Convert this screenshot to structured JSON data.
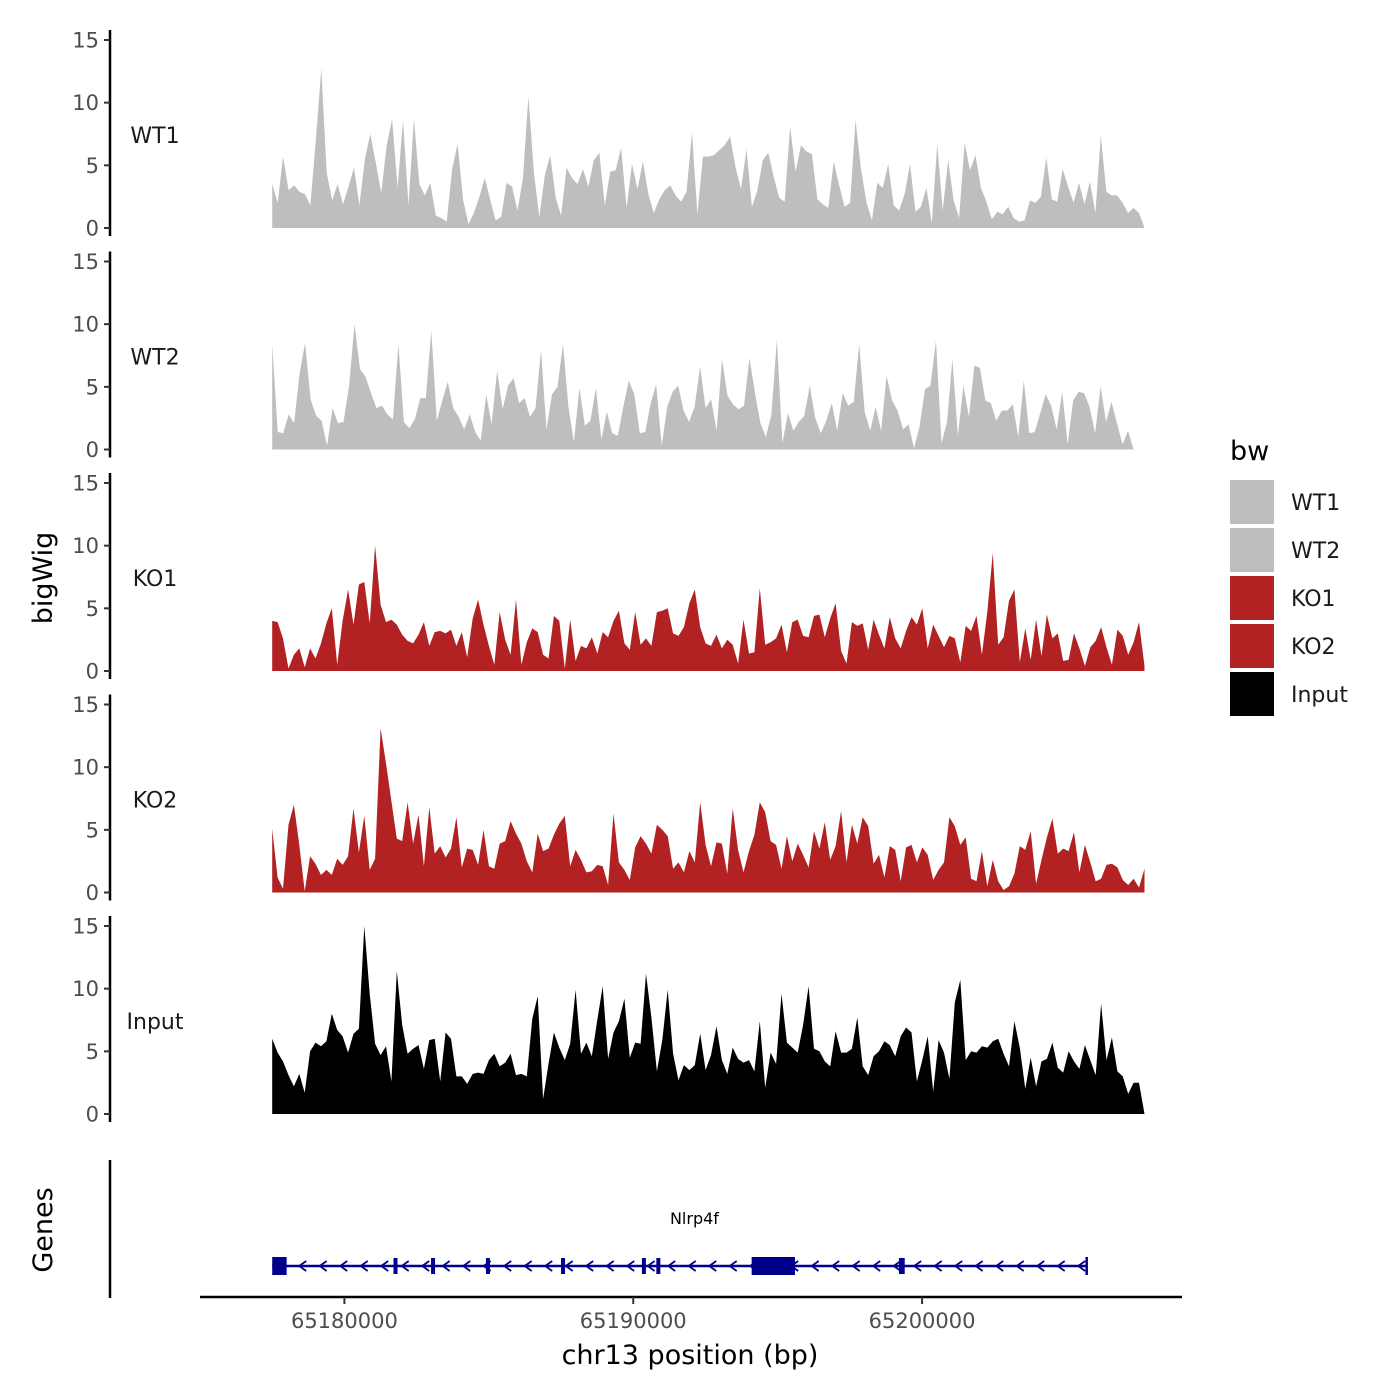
{
  "chart_data": {
    "type": "area",
    "chromosome": "chr13",
    "xlabel": "chr13 position (bp)",
    "ylabel": "bigWig",
    "genes_label": "Genes",
    "x_range": [
      65175000,
      65209000
    ],
    "x_ticks": [
      65180000,
      65190000,
      65200000
    ],
    "x_tick_labels": [
      "65180000",
      "65190000",
      "65200000"
    ],
    "data_x_range": [
      65177500,
      65207700
    ],
    "ylim": [
      0,
      15
    ],
    "y_ticks": [
      0,
      5,
      10,
      15
    ],
    "y_tick_labels": [
      "0",
      "5",
      "10",
      "15"
    ],
    "legend": {
      "title": "bw",
      "position": "right"
    },
    "series": [
      {
        "name": "WT1",
        "color": "#bebebe",
        "values": [
          3.5,
          2.0,
          5.7,
          3.0,
          3.4,
          2.9,
          2.7,
          1.8,
          7.0,
          12.7,
          4.4,
          2.2,
          3.5,
          1.9,
          3.3,
          4.8,
          1.8,
          5.5,
          7.5,
          5.2,
          2.8,
          6.6,
          8.7,
          3.2,
          8.6,
          1.8,
          8.7,
          3.5,
          2.6,
          3.6,
          1.0,
          0.8,
          0.5,
          4.7,
          6.7,
          2.3,
          0.3,
          1.2,
          2.5,
          4.0,
          2.2,
          0.6,
          0.9,
          3.6,
          3.3,
          1.4,
          4.0,
          10.5,
          4.4,
          0.9,
          4.2,
          5.8,
          2.4,
          1.0,
          4.8,
          4.0,
          3.5,
          4.7,
          3.3,
          5.4,
          6.0,
          1.8,
          4.5,
          4.6,
          6.4,
          1.6,
          5.1,
          3.1,
          5.3,
          2.7,
          1.2,
          2.3,
          3.0,
          3.4,
          2.6,
          2.1,
          2.9,
          7.6,
          1.1,
          5.7,
          5.7,
          5.8,
          6.2,
          6.6,
          7.3,
          4.8,
          3.1,
          6.3,
          1.7,
          3.0,
          5.4,
          6.0,
          4.1,
          2.4,
          2.1,
          8.1,
          4.5,
          6.6,
          6.1,
          5.9,
          2.3,
          1.9,
          1.6,
          5.3,
          3.4,
          1.7,
          2.0,
          8.6,
          4.7,
          2.1,
          0.6,
          3.6,
          3.2,
          5.1,
          1.8,
          1.4,
          2.7,
          5.1,
          1.3,
          1.7,
          3.2,
          0.4,
          6.7,
          1.4,
          5.4,
          2.2,
          0.8,
          6.8,
          4.6,
          5.8,
          3.2,
          2.1,
          0.7,
          1.3,
          1.1,
          1.7,
          0.8,
          0.5,
          0.6,
          2.2,
          2.0,
          2.5,
          5.6,
          2.3,
          2.1,
          4.7,
          3.3,
          2.0,
          3.6,
          1.9,
          3.7,
          1.2,
          7.4,
          2.9,
          2.6,
          2.6,
          2.0,
          1.2,
          1.6,
          1.2,
          0.0
        ]
      },
      {
        "name": "WT2",
        "color": "#bebebe",
        "values": [
          8.4,
          1.4,
          1.3,
          2.8,
          2.1,
          6.1,
          8.5,
          4.0,
          2.7,
          2.3,
          0.3,
          3.3,
          2.1,
          2.2,
          5.0,
          10.0,
          6.4,
          5.8,
          4.5,
          3.3,
          3.5,
          2.8,
          2.4,
          8.4,
          2.2,
          1.7,
          2.4,
          4.1,
          4.1,
          9.5,
          2.3,
          3.9,
          5.4,
          3.3,
          2.6,
          1.6,
          2.8,
          1.4,
          0.7,
          4.4,
          2.0,
          6.3,
          3.2,
          5.1,
          5.7,
          3.7,
          4.1,
          2.6,
          3.3,
          7.9,
          1.6,
          4.4,
          5.0,
          8.4,
          3.4,
          0.6,
          4.9,
          1.9,
          2.3,
          4.9,
          0.8,
          3.0,
          1.3,
          1.1,
          3.4,
          5.5,
          4.4,
          1.3,
          1.4,
          3.7,
          5.2,
          0.3,
          3.4,
          4.6,
          5.1,
          3.1,
          2.2,
          3.4,
          6.6,
          3.3,
          4.0,
          1.5,
          7.2,
          4.3,
          3.6,
          3.2,
          3.5,
          7.3,
          4.5,
          2.1,
          1.0,
          2.8,
          8.8,
          0.5,
          2.9,
          1.5,
          2.2,
          2.7,
          5.1,
          2.5,
          1.3,
          2.3,
          3.7,
          1.5,
          4.5,
          3.5,
          3.8,
          8.4,
          3.0,
          1.5,
          3.4,
          1.5,
          5.9,
          3.9,
          3.1,
          1.6,
          2.0,
          0.1,
          1.8,
          4.8,
          5.1,
          8.7,
          0.5,
          2.2,
          7.2,
          1.1,
          5.1,
          2.6,
          6.7,
          6.5,
          3.9,
          3.7,
          2.3,
          3.1,
          3.1,
          3.6,
          1.0,
          5.5,
          1.3,
          1.4,
          2.9,
          4.4,
          3.5,
          1.6,
          4.6,
          0.4,
          3.9,
          4.6,
          4.5,
          3.4,
          1.3,
          5.0,
          2.2,
          3.8,
          2.1,
          0.4,
          1.5,
          0.0,
          0.0,
          0.0
        ]
      },
      {
        "name": "KO1",
        "color": "#b22222",
        "values": [
          4.0,
          3.9,
          2.6,
          0.2,
          1.3,
          1.8,
          0.3,
          1.8,
          1.0,
          2.2,
          3.8,
          5.0,
          0.5,
          4.0,
          6.5,
          3.7,
          6.9,
          7.1,
          3.8,
          10.0,
          5.3,
          3.9,
          4.1,
          3.7,
          2.9,
          2.4,
          2.2,
          2.9,
          3.9,
          2.0,
          3.1,
          3.2,
          3.0,
          3.3,
          2.0,
          3.1,
          1.1,
          4.2,
          5.7,
          3.7,
          2.0,
          0.5,
          4.7,
          2.5,
          1.3,
          5.7,
          0.5,
          2.3,
          3.4,
          3.1,
          1.3,
          1.0,
          4.4,
          4.0,
          0.2,
          4.1,
          0.8,
          2.0,
          1.8,
          2.7,
          1.4,
          3.1,
          2.7,
          4.0,
          4.8,
          2.2,
          1.7,
          4.7,
          2.1,
          2.6,
          2.0,
          4.7,
          4.8,
          5.0,
          3.0,
          2.8,
          3.5,
          5.4,
          6.5,
          3.5,
          2.2,
          2.0,
          2.9,
          1.8,
          2.5,
          2.1,
          0.6,
          4.1,
          1.4,
          1.5,
          6.6,
          2.1,
          2.3,
          2.6,
          3.7,
          1.5,
          3.9,
          4.1,
          2.8,
          2.7,
          4.4,
          4.5,
          2.7,
          4.2,
          5.4,
          1.6,
          0.6,
          3.9,
          3.6,
          3.8,
          1.7,
          4.1,
          2.9,
          1.8,
          4.3,
          2.6,
          1.8,
          3.2,
          4.3,
          3.7,
          5.0,
          1.8,
          3.7,
          2.8,
          1.9,
          2.8,
          2.6,
          0.7,
          3.6,
          3.2,
          4.4,
          1.3,
          4.7,
          9.4,
          2.1,
          2.7,
          5.6,
          6.5,
          0.7,
          3.4,
          0.9,
          4.1,
          1.2,
          4.5,
          2.6,
          3.0,
          0.8,
          0.9,
          3.0,
          1.8,
          0.4,
          1.9,
          2.4,
          3.5,
          1.9,
          0.5,
          3.3,
          2.8,
          1.3,
          2.3,
          3.9,
          0.4
        ]
      },
      {
        "name": "KO2",
        "color": "#b22222",
        "values": [
          5.1,
          1.2,
          0.3,
          5.4,
          7.0,
          3.8,
          0.1,
          2.9,
          2.3,
          1.4,
          1.8,
          1.4,
          2.7,
          2.2,
          2.9,
          6.7,
          3.2,
          6.1,
          1.8,
          2.7,
          13.1,
          10.3,
          7.3,
          4.3,
          4.1,
          7.2,
          3.9,
          6.2,
          2.1,
          6.8,
          3.1,
          3.7,
          2.8,
          3.5,
          6.0,
          2.0,
          3.5,
          3.4,
          2.2,
          5.0,
          2.1,
          1.9,
          3.9,
          4.1,
          5.7,
          4.7,
          3.9,
          2.5,
          1.6,
          4.7,
          3.3,
          3.5,
          4.6,
          5.5,
          6.1,
          2.1,
          3.4,
          2.6,
          1.6,
          1.7,
          2.2,
          2.1,
          0.6,
          6.3,
          2.4,
          1.8,
          1.0,
          3.6,
          4.5,
          3.9,
          3.1,
          5.4,
          5.0,
          4.5,
          1.9,
          2.4,
          1.6,
          3.3,
          2.4,
          7.2,
          3.8,
          2.1,
          4.0,
          3.9,
          1.5,
          6.7,
          3.4,
          1.6,
          3.3,
          4.6,
          7.2,
          6.4,
          4.1,
          3.8,
          1.9,
          4.5,
          2.5,
          3.9,
          3.0,
          2.0,
          4.9,
          3.5,
          5.6,
          2.6,
          3.7,
          6.5,
          2.4,
          5.4,
          3.9,
          6.0,
          5.3,
          2.3,
          3.0,
          1.2,
          3.7,
          3.4,
          0.9,
          3.6,
          3.8,
          2.4,
          3.6,
          3.0,
          1.0,
          1.8,
          2.4,
          6.0,
          5.3,
          3.8,
          4.4,
          1.1,
          0.9,
          3.3,
          0.5,
          2.6,
          0.9,
          0.2,
          0.5,
          1.5,
          3.7,
          3.4,
          4.9,
          0.7,
          2.6,
          4.4,
          5.9,
          3.1,
          3.5,
          3.3,
          4.8,
          1.6,
          3.8,
          2.4,
          0.9,
          1.1,
          2.2,
          2.3,
          2.0,
          1.0,
          0.6,
          1.1,
          0.4,
          1.9
        ]
      },
      {
        "name": "Input",
        "color": "#000000",
        "values": [
          6.0,
          4.9,
          4.2,
          3.1,
          2.2,
          3.2,
          1.7,
          5.0,
          5.7,
          5.4,
          5.8,
          8.0,
          6.7,
          6.2,
          4.9,
          6.4,
          6.8,
          15.0,
          9.6,
          5.6,
          4.7,
          5.4,
          2.6,
          11.4,
          7.1,
          4.8,
          5.2,
          5.5,
          3.6,
          5.9,
          6.0,
          2.6,
          6.5,
          6.0,
          3.0,
          3.0,
          2.4,
          3.2,
          3.3,
          3.2,
          4.3,
          4.8,
          3.8,
          4.1,
          4.8,
          3.1,
          3.2,
          3.0,
          7.6,
          9.4,
          1.2,
          4.0,
          6.5,
          5.3,
          4.3,
          5.6,
          9.9,
          4.8,
          5.7,
          4.6,
          7.5,
          10.2,
          4.4,
          6.5,
          7.4,
          9.2,
          4.5,
          5.7,
          5.6,
          11.2,
          7.7,
          3.4,
          5.9,
          9.9,
          4.8,
          2.7,
          3.9,
          3.5,
          3.9,
          6.4,
          3.5,
          4.7,
          7.0,
          4.3,
          3.2,
          5.3,
          4.4,
          4.1,
          4.3,
          3.4,
          7.4,
          2.1,
          4.9,
          4.0,
          9.6,
          5.7,
          5.3,
          4.9,
          7.1,
          10.2,
          5.2,
          5.0,
          4.2,
          3.8,
          6.6,
          4.9,
          4.9,
          5.2,
          7.7,
          3.8,
          3.1,
          4.6,
          5.0,
          5.8,
          5.5,
          4.6,
          6.2,
          6.9,
          6.5,
          2.6,
          4.3,
          6.2,
          1.8,
          5.9,
          4.9,
          2.8,
          8.9,
          10.7,
          4.3,
          5.0,
          4.9,
          5.4,
          5.3,
          5.8,
          6.0,
          4.8,
          3.8,
          7.4,
          5.3,
          2.0,
          4.5,
          2.2,
          4.2,
          4.4,
          5.7,
          3.7,
          3.3,
          5.0,
          4.2,
          3.6,
          5.5,
          4.3,
          3.1,
          8.8,
          4.3,
          6.1,
          3.4,
          3.0,
          1.6,
          2.5,
          2.5,
          0.0
        ]
      }
    ],
    "gene": {
      "name": "Nlrp4f",
      "strand": "-",
      "start": 65177500,
      "end": 65205700,
      "exons": [
        {
          "start": 65177500,
          "end": 65178000
        },
        {
          "start": 65181700,
          "end": 65181800
        },
        {
          "start": 65183000,
          "end": 65183100
        },
        {
          "start": 65184900,
          "end": 65185000
        },
        {
          "start": 65187500,
          "end": 65187600
        },
        {
          "start": 65190300,
          "end": 65190400
        },
        {
          "start": 65190800,
          "end": 65190900
        },
        {
          "start": 65194100,
          "end": 65195600
        },
        {
          "start": 65199200,
          "end": 65199400
        }
      ]
    }
  }
}
